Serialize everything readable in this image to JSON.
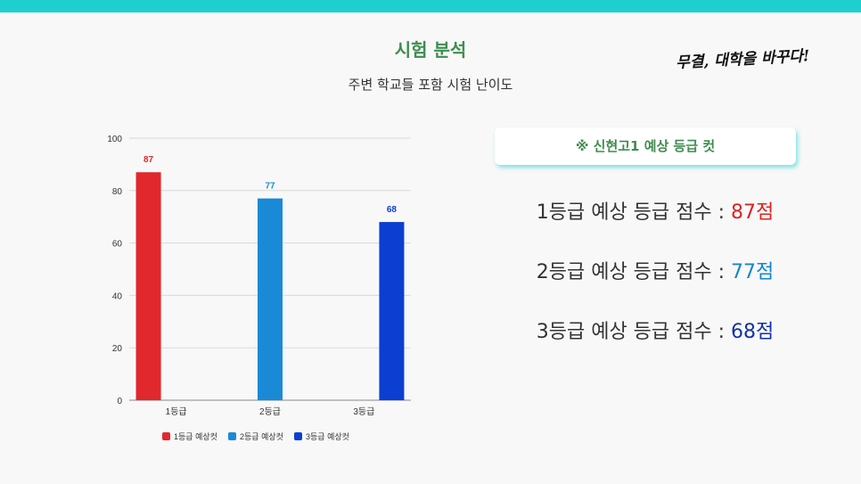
{
  "header": {
    "title": "시험 분석",
    "subtitle": "주변 학교들 포함 시험 난이도",
    "brand": "무결, 대학을 바꾸다!"
  },
  "colors": {
    "accent_bar": "#1ecfcf",
    "title_green": "#3f8d4f",
    "grade1": "#e0282d",
    "grade2": "#1a8ad6",
    "grade3": "#0c3fd1"
  },
  "chart_data": {
    "type": "bar",
    "categories": [
      "1등급",
      "2등급",
      "3등급"
    ],
    "series": [
      {
        "name": "1등급 예상컷",
        "values": [
          87,
          null,
          null
        ],
        "color": "#e0282d"
      },
      {
        "name": "2등급 예상컷",
        "values": [
          null,
          77,
          null
        ],
        "color": "#1a8ad6"
      },
      {
        "name": "3등급 예상컷",
        "values": [
          null,
          null,
          68
        ],
        "color": "#0c3fd1"
      }
    ],
    "yticks": [
      0,
      20,
      40,
      60,
      80,
      100
    ],
    "ylim": [
      0,
      100
    ],
    "grid": true,
    "legend_position": "bottom",
    "data_labels": true
  },
  "panel": {
    "badge": "※ 신현고1 예상 등급 컷",
    "scores": [
      {
        "label": "1등급 예상 등급 점수 : ",
        "value": "87점"
      },
      {
        "label": "2등급 예상 등급 점수 : ",
        "value": "77점"
      },
      {
        "label": "3등급 예상 등급 점수 : ",
        "value": "68점"
      }
    ]
  }
}
